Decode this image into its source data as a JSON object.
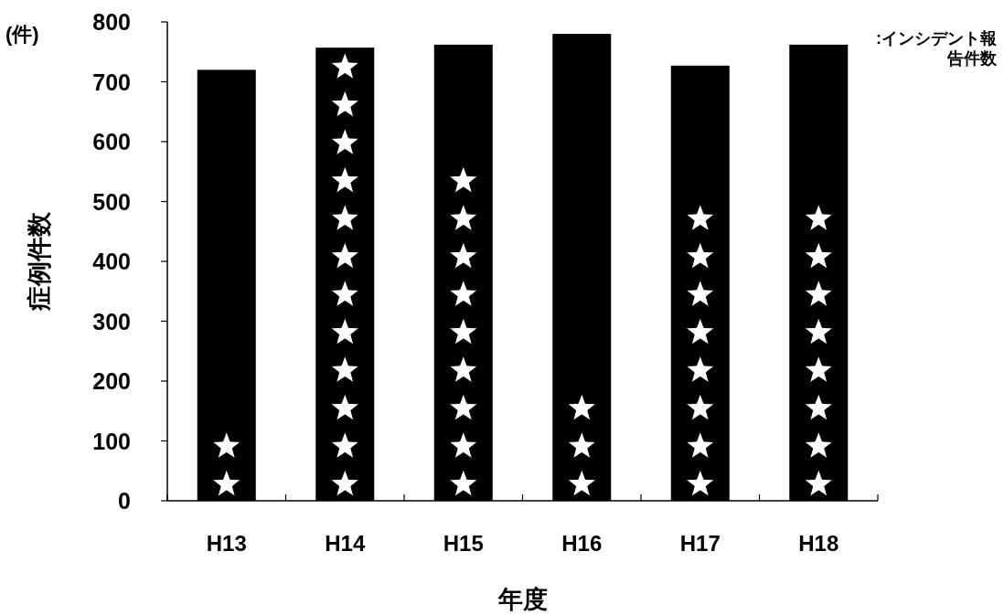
{
  "chart_data": {
    "type": "bar",
    "xlabel": "年度",
    "ylabel": "症例件数",
    "categories": [
      "H13",
      "H14",
      "H15",
      "H16",
      "H17",
      "H18"
    ],
    "values": [
      720,
      757,
      762,
      780,
      727,
      762
    ],
    "color": "#000000",
    "ylim": [
      0,
      800
    ],
    "yticks": [
      0,
      100,
      200,
      300,
      400,
      500,
      600,
      700,
      800
    ],
    "grid": false,
    "annotations": [
      "(件)",
      ":インシデント報告件数"
    ]
  }
}
